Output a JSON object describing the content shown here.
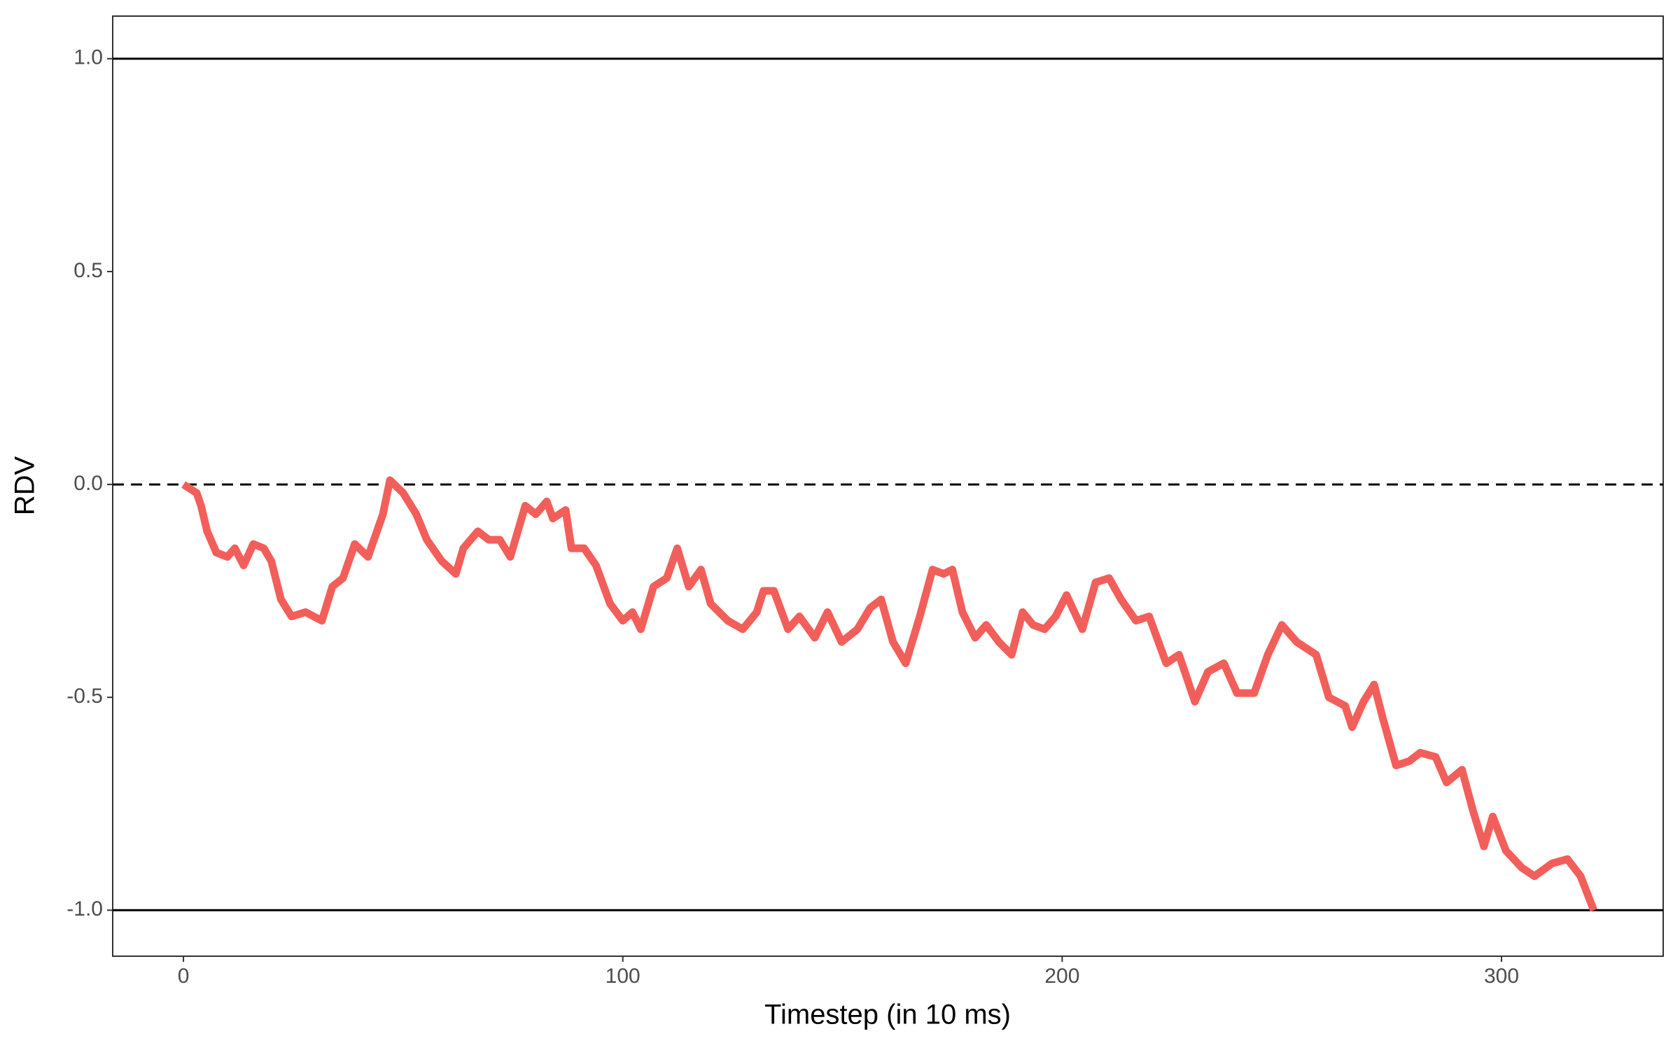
{
  "chart_data": {
    "type": "line",
    "x_label": "Timestep (in 10 ms)",
    "y_label": "RDV",
    "color": "#f25f5a",
    "xlim": [
      -16.1,
      336.8
    ],
    "ylim": [
      -1.108,
      1.1
    ],
    "xticks": [
      0,
      100,
      200,
      300
    ],
    "yticks": [
      {
        "value": -1,
        "label": "-1.0"
      },
      {
        "value": -0.5,
        "label": "-0.5"
      },
      {
        "value": 0,
        "label": "0.0"
      },
      {
        "value": 0.5,
        "label": "0.5"
      },
      {
        "value": 1,
        "label": "1.0"
      }
    ],
    "hlines": [
      {
        "y": 1,
        "style": "solid"
      },
      {
        "y": 0,
        "style": "dashed"
      },
      {
        "y": -1,
        "style": "solid"
      }
    ],
    "x": [
      0,
      3,
      4,
      5.4,
      7.5,
      10,
      11.7,
      13.7,
      15.9,
      18.3,
      20,
      22.2,
      24.6,
      27.8,
      31.5,
      33.9,
      36.3,
      39,
      42,
      45.4,
      47,
      50,
      53,
      55.4,
      58.8,
      62,
      63.7,
      67,
      69.5,
      72,
      74.4,
      77.8,
      80.2,
      82.7,
      84.1,
      87,
      88.3,
      91.2,
      93.9,
      97.1,
      100,
      102.2,
      104.1,
      107,
      110,
      112.4,
      115,
      117.8,
      120,
      123.9,
      127.3,
      130.5,
      132,
      134.4,
      137.6,
      140.2,
      143.7,
      146.6,
      149.8,
      153.4,
      156.3,
      158.8,
      161.5,
      164.4,
      167.6,
      170.5,
      173,
      175,
      177.3,
      180.2,
      182.7,
      185.6,
      188.5,
      191,
      193.4,
      196,
      198.5,
      201,
      204.6,
      207.6,
      210.7,
      213.4,
      216.8,
      219.8,
      223.7,
      226.6,
      230.2,
      233.2,
      236.8,
      239.8,
      243.7,
      246.8,
      250,
      253.4,
      257.8,
      260.7,
      264.4,
      266,
      268.6,
      271,
      273,
      276,
      279,
      281.5,
      285,
      287.5,
      291,
      293.6,
      296,
      298,
      301,
      304.6,
      307.5,
      311.5,
      315,
      318,
      321
    ],
    "values": [
      0,
      -0.02,
      -0.05,
      -0.11,
      -0.16,
      -0.17,
      -0.15,
      -0.19,
      -0.14,
      -0.15,
      -0.18,
      -0.27,
      -0.31,
      -0.3,
      -0.32,
      -0.24,
      -0.22,
      -0.14,
      -0.17,
      -0.07,
      0.01,
      -0.02,
      -0.07,
      -0.13,
      -0.18,
      -0.21,
      -0.15,
      -0.11,
      -0.13,
      -0.13,
      -0.17,
      -0.05,
      -0.07,
      -0.04,
      -0.08,
      -0.06,
      -0.15,
      -0.15,
      -0.19,
      -0.28,
      -0.32,
      -0.3,
      -0.34,
      -0.24,
      -0.22,
      -0.15,
      -0.24,
      -0.2,
      -0.28,
      -0.32,
      -0.34,
      -0.3,
      -0.25,
      -0.25,
      -0.34,
      -0.31,
      -0.36,
      -0.3,
      -0.37,
      -0.34,
      -0.29,
      -0.27,
      -0.37,
      -0.42,
      -0.31,
      -0.2,
      -0.21,
      -0.2,
      -0.3,
      -0.36,
      -0.33,
      -0.37,
      -0.4,
      -0.3,
      -0.33,
      -0.34,
      -0.31,
      -0.26,
      -0.34,
      -0.23,
      -0.22,
      -0.27,
      -0.32,
      -0.31,
      -0.42,
      -0.4,
      -0.51,
      -0.44,
      -0.42,
      -0.49,
      -0.49,
      -0.4,
      -0.33,
      -0.37,
      -0.4,
      -0.5,
      -0.52,
      -0.57,
      -0.51,
      -0.47,
      -0.55,
      -0.66,
      -0.65,
      -0.63,
      -0.64,
      -0.7,
      -0.67,
      -0.77,
      -0.85,
      -0.78,
      -0.86,
      -0.9,
      -0.92,
      -0.89,
      -0.88,
      -0.92,
      -1.0
    ]
  }
}
